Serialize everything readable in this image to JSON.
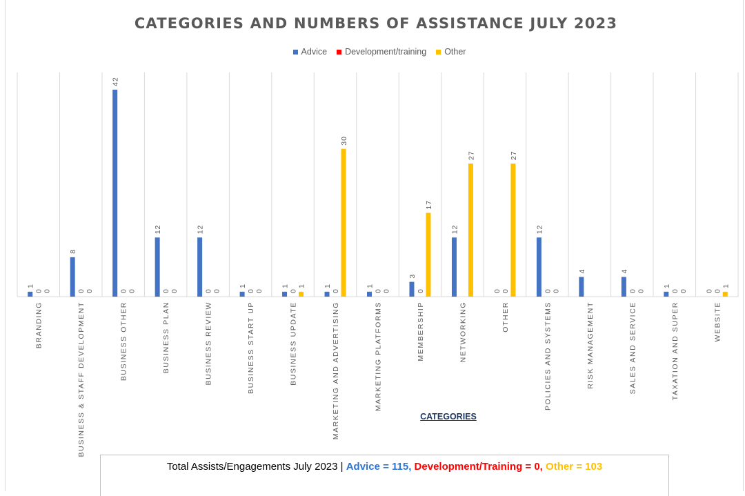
{
  "chart_data": {
    "type": "bar",
    "title": "CATEGORIES AND NUMBERS OF ASSISTANCE JULY 2023",
    "xlabel": "CATEGORIES",
    "ylabel": "",
    "ylim": [
      0,
      45
    ],
    "grid": "vertical category separators",
    "legend_position": "top",
    "categories": [
      "BRANDING",
      "BUSINESS & STAFF DEVELOPMENT",
      "BUSINESS OTHER",
      "BUSINESS PLAN",
      "BUSINESS REVIEW",
      "BUSINESS START UP",
      "BUSINESS UPDATE",
      "MARKETING AND ADVERTISING",
      "MARKETING PLATFORMS",
      "MEMBERSHIP",
      "NETWORKING",
      "OTHER",
      "POLICIES AND SYSTEMS",
      "RISK MANAGEMENT",
      "SALES AND SERVICE",
      "TAXATION AND SUPER",
      "WEBSITE"
    ],
    "series": [
      {
        "name": "Advice",
        "color": "#4472c4",
        "values": [
          1,
          8,
          42,
          12,
          12,
          1,
          1,
          1,
          1,
          3,
          12,
          0,
          12,
          4,
          4,
          1,
          0
        ],
        "labels": [
          "1",
          "8",
          "42",
          "12",
          "12",
          "1",
          "1",
          "1",
          "1",
          "3",
          "12",
          "0",
          "12",
          "4",
          "4",
          "1",
          "0"
        ]
      },
      {
        "name": "Development/training",
        "color": "#ff0000",
        "values": [
          0,
          0,
          0,
          0,
          0,
          0,
          0,
          0,
          0,
          0,
          0,
          0,
          0,
          null,
          0,
          0,
          0
        ],
        "labels": [
          "0",
          "0",
          "0",
          "0",
          "0",
          "0",
          "0",
          "0",
          "0",
          "0",
          "",
          "0",
          "0",
          "",
          "0",
          "0",
          "0"
        ]
      },
      {
        "name": "Other",
        "color": "#ffc000",
        "values": [
          0,
          0,
          0,
          0,
          0,
          0,
          1,
          30,
          0,
          17,
          27,
          27,
          0,
          null,
          0,
          0,
          1
        ],
        "labels": [
          "0",
          "0",
          "0",
          "0",
          "0",
          "0",
          "1",
          "30",
          "0",
          "17",
          "27",
          "27",
          "0",
          "",
          "0",
          "0",
          "1"
        ]
      }
    ]
  },
  "totals": {
    "prefix": "Total Assists/Engagements July 2023",
    "separator": "|",
    "advice": "Advice = 115",
    "comma": ",",
    "development": "Development/Training = 0,",
    "other": "Other = 103"
  }
}
